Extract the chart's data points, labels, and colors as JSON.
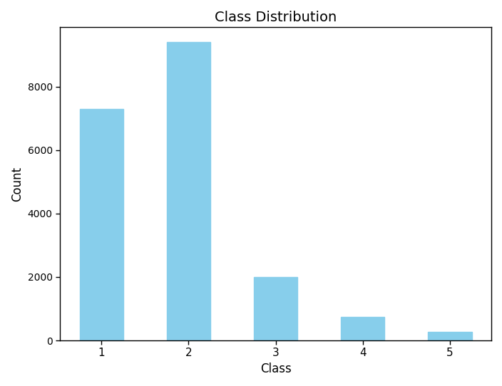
{
  "categories": [
    "1",
    "2",
    "3",
    "4",
    "5"
  ],
  "values": [
    7300,
    9400,
    2000,
    750,
    275
  ],
  "bar_color": "#87CEEB",
  "title": "Class Distribution",
  "xlabel": "Class",
  "ylabel": "Count",
  "title_fontsize": 14,
  "label_fontsize": 12,
  "tick_fontsize": 11,
  "background_color": "#ffffff"
}
